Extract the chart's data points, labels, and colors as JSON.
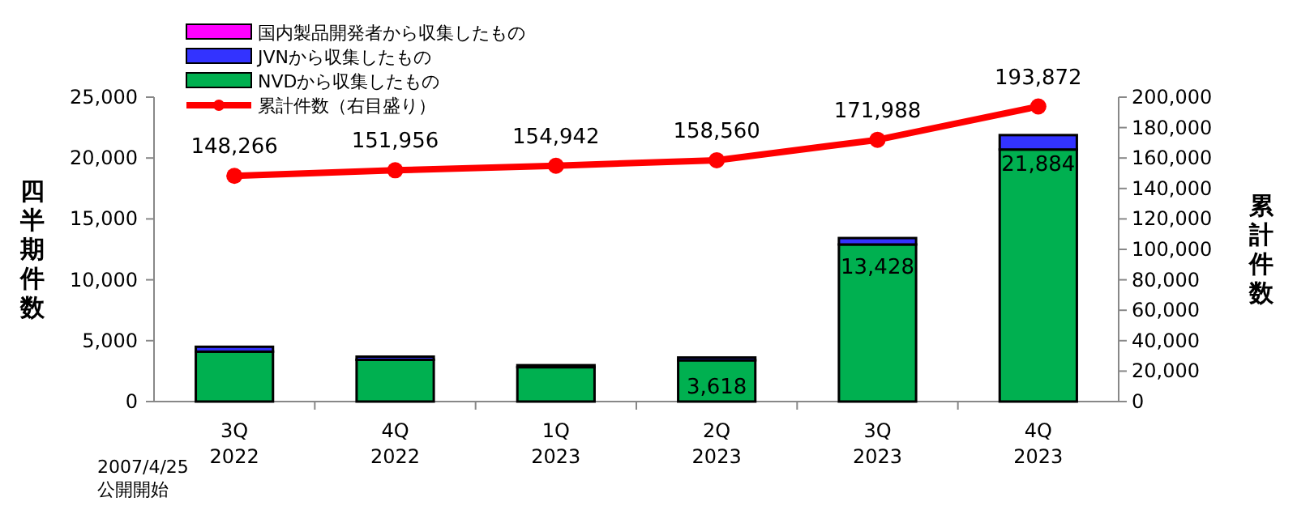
{
  "chart_data": {
    "type": "bar",
    "stacked": true,
    "ylabel": "四半期件数",
    "y2label": "累計件数",
    "categories": [
      "3Q 2022",
      "4Q 2022",
      "1Q 2023",
      "2Q 2023",
      "3Q 2023",
      "4Q 2023"
    ],
    "series": [
      {
        "name": "NVDから収集したもの",
        "color": "#00b050",
        "values": [
          4100,
          3430,
          2820,
          3390,
          12900,
          20700
        ]
      },
      {
        "name": "JVNから収集したもの",
        "color": "#3333ff",
        "values": [
          400,
          260,
          166,
          228,
          528,
          1184
        ]
      },
      {
        "name": "国内製品開発者から収集したもの",
        "color": "#ff00ff",
        "values": [
          0,
          0,
          0,
          0,
          0,
          0
        ]
      },
      {
        "name": "累計件数（右目盛り）",
        "type": "line",
        "axis": "y2",
        "color": "#ff0000",
        "marker": "circle",
        "values": [
          148266,
          151956,
          154942,
          158560,
          171988,
          193872
        ],
        "value_labels": [
          "148,266",
          "151,956",
          "154,942",
          "158,560",
          "171,988",
          "193,872"
        ]
      }
    ],
    "totals": [
      null,
      null,
      null,
      "3,618",
      "13,428",
      "21,884"
    ],
    "ylim": [
      0,
      25000
    ],
    "yticks": [
      {
        "value": 0,
        "label": "0"
      },
      {
        "value": 5000,
        "label": "5,000"
      },
      {
        "value": 10000,
        "label": "10,000"
      },
      {
        "value": 15000,
        "label": "15,000"
      },
      {
        "value": 20000,
        "label": "20,000"
      },
      {
        "value": 25000,
        "label": "25,000"
      }
    ],
    "y2lim": [
      0,
      200000
    ],
    "y2ticks": [
      {
        "value": 0,
        "label": "0"
      },
      {
        "value": 20000,
        "label": "20,000"
      },
      {
        "value": 40000,
        "label": "40,000"
      },
      {
        "value": 60000,
        "label": "60,000"
      },
      {
        "value": 80000,
        "label": "80,000"
      },
      {
        "value": 100000,
        "label": "100,000"
      },
      {
        "value": 120000,
        "label": "120,000"
      },
      {
        "value": 140000,
        "label": "140,000"
      },
      {
        "value": 160000,
        "label": "160,000"
      },
      {
        "value": 180000,
        "label": "180,000"
      },
      {
        "value": 200000,
        "label": "200,000"
      }
    ],
    "legend": "top left",
    "grid": false,
    "annotations": [
      "2007/4/25 公開開始"
    ]
  }
}
